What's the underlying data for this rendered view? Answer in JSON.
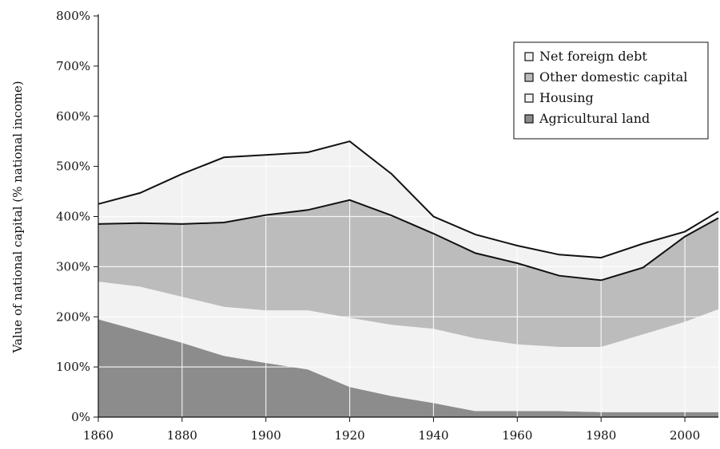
{
  "chart_data": {
    "type": "area",
    "title": "",
    "xlabel": "",
    "ylabel": "Value of national capital (% national income)",
    "xlim": [
      1860,
      2008
    ],
    "ylim": [
      0,
      800
    ],
    "xticks": [
      1860,
      1880,
      1900,
      1920,
      1940,
      1960,
      1980,
      2000
    ],
    "yticks": [
      0,
      100,
      200,
      300,
      400,
      500,
      600,
      700,
      800
    ],
    "ytick_labels": [
      "0%",
      "100%",
      "200%",
      "300%",
      "400%",
      "500%",
      "600%",
      "700%",
      "800%"
    ],
    "grid": true,
    "legend_position": "top-right",
    "stacked": true,
    "series": [
      {
        "name": "Agricultural land",
        "color": "#8c8c8c",
        "x": [
          1860,
          1870,
          1880,
          1890,
          1900,
          1910,
          1920,
          1930,
          1940,
          1950,
          1960,
          1970,
          1980,
          1990,
          2000,
          2008
        ],
        "values": [
          195,
          172,
          148,
          122,
          108,
          95,
          60,
          42,
          28,
          12,
          12,
          12,
          10,
          10,
          10,
          10
        ]
      },
      {
        "name": "Housing",
        "color": "#f2f2f2",
        "x": [
          1860,
          1870,
          1880,
          1890,
          1900,
          1910,
          1920,
          1930,
          1940,
          1950,
          1960,
          1970,
          1980,
          1990,
          2000,
          2008
        ],
        "values": [
          75,
          88,
          92,
          98,
          105,
          118,
          138,
          142,
          148,
          145,
          133,
          128,
          130,
          155,
          180,
          205
        ]
      },
      {
        "name": "Other domestic capital",
        "color": "#bcbcbc",
        "x": [
          1860,
          1870,
          1880,
          1890,
          1900,
          1910,
          1920,
          1930,
          1940,
          1950,
          1960,
          1970,
          1980,
          1990,
          2000,
          2008
        ],
        "values": [
          115,
          127,
          145,
          168,
          190,
          200,
          235,
          218,
          190,
          170,
          162,
          142,
          133,
          133,
          170,
          182
        ]
      },
      {
        "name": "Net foreign debt",
        "color": "#f2f2f2",
        "x": [
          1860,
          1870,
          1880,
          1890,
          1900,
          1910,
          1920,
          1930,
          1940,
          1950,
          1960,
          1970,
          1980,
          1990,
          2000,
          2008
        ],
        "values": [
          40,
          60,
          100,
          130,
          120,
          115,
          117,
          83,
          34,
          37,
          35,
          42,
          45,
          48,
          10,
          13
        ]
      }
    ],
    "totals": {
      "x": [
        1860,
        1870,
        1880,
        1890,
        1900,
        1910,
        1920,
        1930,
        1940,
        1950,
        1960,
        1970,
        1980,
        1990,
        2000,
        2008
      ],
      "domestic_capital": [
        385,
        387,
        385,
        388,
        403,
        413,
        433,
        402,
        366,
        327,
        307,
        282,
        273,
        298,
        360,
        397
      ],
      "national_capital": [
        425,
        447,
        485,
        518,
        523,
        528,
        550,
        485,
        400,
        364,
        342,
        324,
        318,
        346,
        370,
        410
      ]
    },
    "legend": [
      {
        "label": "Net foreign debt",
        "color": "#f2f2f2"
      },
      {
        "label": "Other domestic capital",
        "color": "#bcbcbc"
      },
      {
        "label": "Housing",
        "color": "#f2f2f2"
      },
      {
        "label": "Agricultural land",
        "color": "#8c8c8c"
      }
    ]
  }
}
